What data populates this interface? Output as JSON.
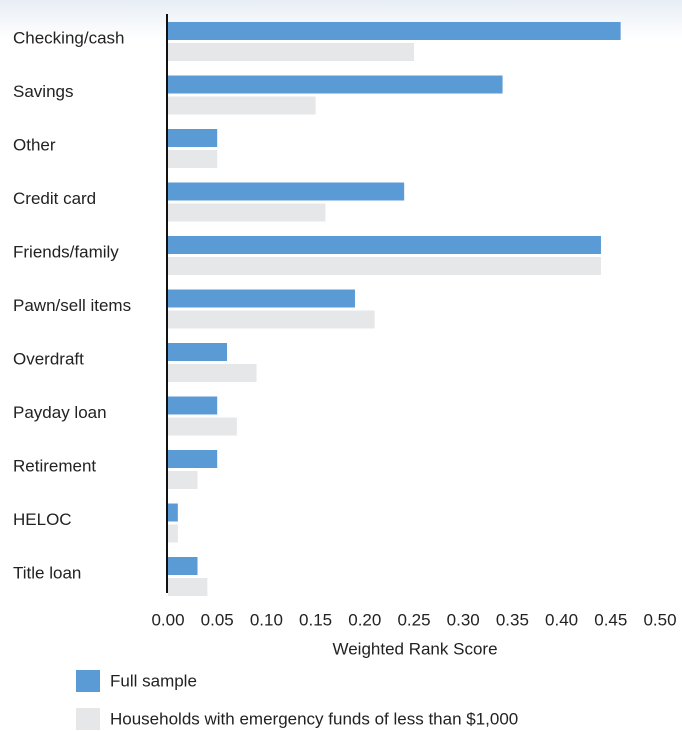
{
  "chart_data": {
    "type": "bar",
    "orientation": "horizontal",
    "categories": [
      "Checking/cash",
      "Savings",
      "Other",
      "Credit card",
      "Friends/family",
      "Pawn/sell items",
      "Overdraft",
      "Payday loan",
      "Retirement",
      "HELOC",
      "Title loan"
    ],
    "series": [
      {
        "name": "Full sample",
        "color": "#5b9bd5",
        "values": [
          0.46,
          0.34,
          0.05,
          0.24,
          0.44,
          0.19,
          0.06,
          0.05,
          0.05,
          0.01,
          0.03
        ]
      },
      {
        "name": "Households with emergency funds of less than $1,000",
        "color": "#e6e7e8",
        "values": [
          0.25,
          0.15,
          0.05,
          0.16,
          0.44,
          0.21,
          0.09,
          0.07,
          0.03,
          0.01,
          0.04
        ]
      }
    ],
    "xlabel": "Weighted Rank Score",
    "xlim": [
      0,
      0.5
    ],
    "xticks": [
      {
        "value": 0,
        "label": "0.00"
      },
      0.05,
      {
        "value": 0.1,
        "label": "0.10"
      },
      0.15,
      {
        "value": 0.2,
        "label": "0.20"
      },
      0.25,
      {
        "value": 0.3,
        "label": "0.30"
      },
      0.35,
      {
        "value": 0.4,
        "label": "0.40"
      },
      0.45,
      {
        "value": 0.5,
        "label": "0.50"
      }
    ],
    "legend": "bottom-left"
  }
}
